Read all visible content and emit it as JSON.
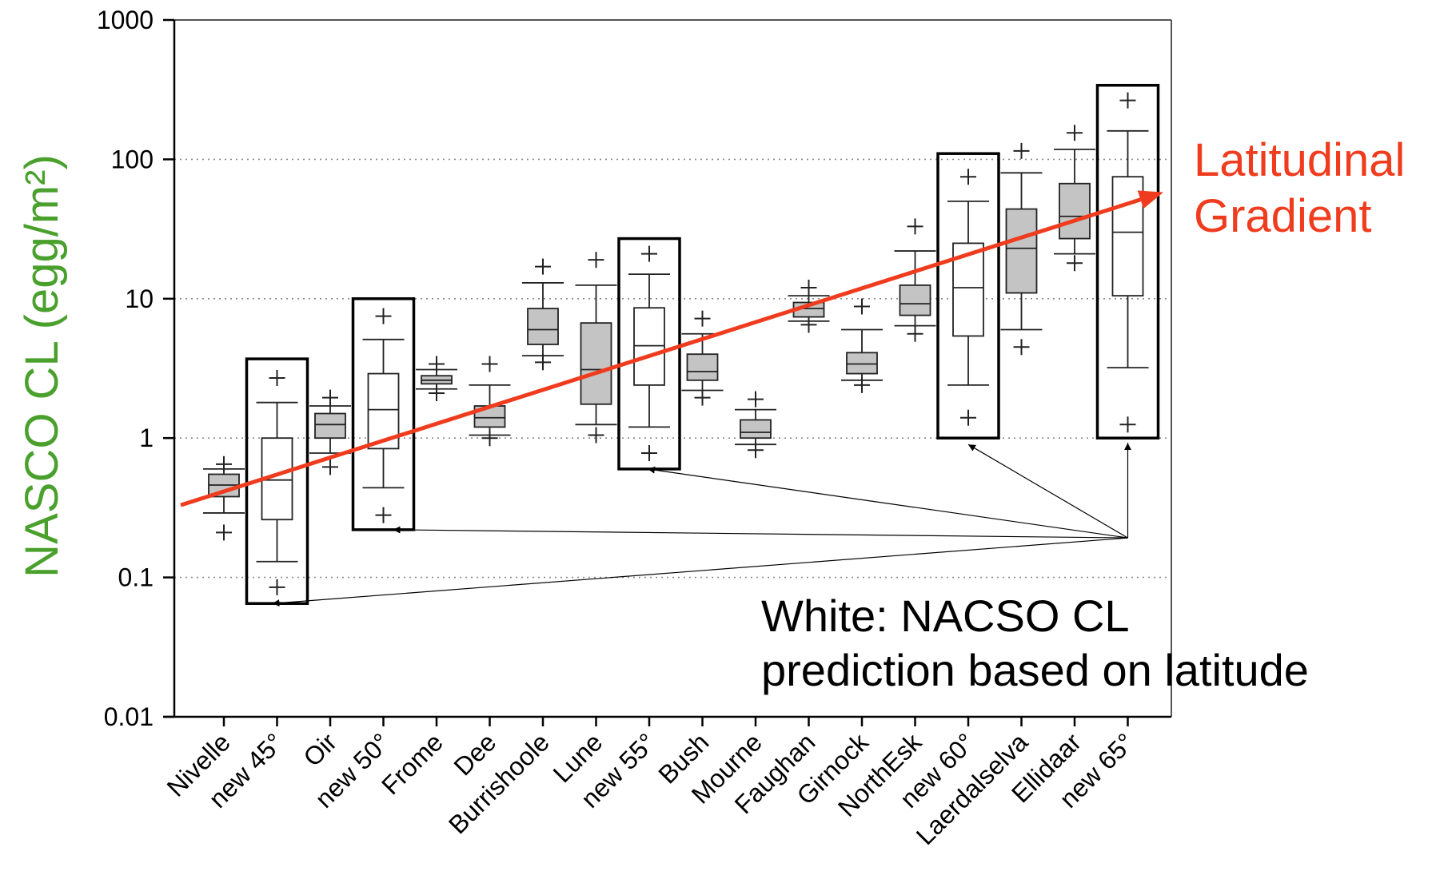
{
  "chart_data": {
    "type": "box",
    "ylabel": "NASCO CL (egg/m²)",
    "yscale": "log",
    "ylim": [
      0.01,
      1000
    ],
    "yticks": [
      0.01,
      0.1,
      1,
      10,
      100,
      1000
    ],
    "ytick_labels": [
      "0.01",
      "0.1",
      "1",
      "10",
      "100",
      "1000"
    ],
    "grid": "horizontal dotted at 0.1, 1, 10, 100",
    "categories": [
      "Nivelle",
      "new 45°",
      "Oir",
      "new 50°",
      "Frome",
      "Dee",
      "Burrishoole",
      "Lune",
      "new 55°",
      "Bush",
      "Mourne",
      "Faughan",
      "Girnock",
      "NorthEsk",
      "new 60°",
      "Laerdalselva",
      "Ellidaar",
      "new 65°"
    ],
    "boxes": [
      {
        "category": "Nivelle",
        "kind": "observed",
        "whisker_low": 0.29,
        "q1": 0.38,
        "median": 0.46,
        "q3": 0.55,
        "whisker_high": 0.6,
        "outliers": [
          0.21,
          0.65
        ]
      },
      {
        "category": "new 45°",
        "kind": "prediction",
        "whisker_low": 0.13,
        "q1": 0.26,
        "median": 0.5,
        "q3": 1.0,
        "whisker_high": 1.8,
        "outliers": [
          0.085,
          2.7
        ]
      },
      {
        "category": "Oir",
        "kind": "observed",
        "whisker_low": 0.78,
        "q1": 1.0,
        "median": 1.25,
        "q3": 1.5,
        "whisker_high": 1.7,
        "outliers": [
          0.62,
          1.95
        ]
      },
      {
        "category": "new 50°",
        "kind": "prediction",
        "whisker_low": 0.44,
        "q1": 0.84,
        "median": 1.6,
        "q3": 2.9,
        "whisker_high": 5.1,
        "outliers": [
          0.28,
          7.5
        ]
      },
      {
        "category": "Frome",
        "kind": "observed",
        "whisker_low": 2.25,
        "q1": 2.45,
        "median": 2.6,
        "q3": 2.8,
        "whisker_high": 3.1,
        "outliers": [
          2.1,
          3.4
        ]
      },
      {
        "category": "Dee",
        "kind": "observed",
        "whisker_low": 1.05,
        "q1": 1.2,
        "median": 1.4,
        "q3": 1.7,
        "whisker_high": 2.4,
        "outliers": [
          1.0,
          3.4
        ]
      },
      {
        "category": "Burrishoole",
        "kind": "observed",
        "whisker_low": 3.9,
        "q1": 4.7,
        "median": 6.0,
        "q3": 8.5,
        "whisker_high": 13,
        "outliers": [
          3.5,
          17
        ]
      },
      {
        "category": "Lune",
        "kind": "observed",
        "whisker_low": 1.25,
        "q1": 1.75,
        "median": 3.1,
        "q3": 6.7,
        "whisker_high": 12.5,
        "outliers": [
          1.05,
          19
        ]
      },
      {
        "category": "new 55°",
        "kind": "prediction",
        "whisker_low": 1.2,
        "q1": 2.4,
        "median": 4.6,
        "q3": 8.6,
        "whisker_high": 15,
        "outliers": [
          0.78,
          21
        ]
      },
      {
        "category": "Bush",
        "kind": "observed",
        "whisker_low": 2.2,
        "q1": 2.6,
        "median": 3.0,
        "q3": 4.0,
        "whisker_high": 5.6,
        "outliers": [
          1.95,
          7.2
        ]
      },
      {
        "category": "Mourne",
        "kind": "observed",
        "whisker_low": 0.9,
        "q1": 1.0,
        "median": 1.1,
        "q3": 1.35,
        "whisker_high": 1.6,
        "outliers": [
          0.82,
          1.9
        ]
      },
      {
        "category": "Faughan",
        "kind": "observed",
        "whisker_low": 6.9,
        "q1": 7.4,
        "median": 8.5,
        "q3": 9.4,
        "whisker_high": 10.5,
        "outliers": [
          6.5,
          12
        ]
      },
      {
        "category": "Girnock",
        "kind": "observed",
        "whisker_low": 2.6,
        "q1": 2.9,
        "median": 3.4,
        "q3": 4.1,
        "whisker_high": 6.0,
        "outliers": [
          2.4,
          8.8
        ]
      },
      {
        "category": "NorthEsk",
        "kind": "observed",
        "whisker_low": 6.4,
        "q1": 7.6,
        "median": 9.2,
        "q3": 12.5,
        "whisker_high": 22,
        "outliers": [
          5.6,
          33
        ]
      },
      {
        "category": "new 60°",
        "kind": "prediction",
        "whisker_low": 2.4,
        "q1": 5.4,
        "median": 12,
        "q3": 25,
        "whisker_high": 50,
        "outliers": [
          1.4,
          75
        ]
      },
      {
        "category": "Laerdalselva",
        "kind": "observed",
        "whisker_low": 6.0,
        "q1": 11,
        "median": 23,
        "q3": 44,
        "whisker_high": 80,
        "outliers": [
          4.5,
          115
        ]
      },
      {
        "category": "Ellidaar",
        "kind": "observed",
        "whisker_low": 21,
        "q1": 27,
        "median": 39,
        "q3": 67,
        "whisker_high": 118,
        "outliers": [
          18,
          155
        ]
      },
      {
        "category": "new 65°",
        "kind": "prediction",
        "whisker_low": 3.2,
        "q1": 10.5,
        "median": 30,
        "q3": 75,
        "whisker_high": 160,
        "outliers": [
          1.25,
          265
        ]
      }
    ],
    "highlight_frames": [
      {
        "category": "new 45°",
        "y_range": [
          0.065,
          3.7
        ]
      },
      {
        "category": "new 50°",
        "y_range": [
          0.22,
          10
        ]
      },
      {
        "category": "new 55°",
        "y_range": [
          0.6,
          27
        ]
      },
      {
        "category": "new 60°",
        "y_range": [
          1.0,
          110
        ]
      },
      {
        "category": "new 65°",
        "y_range": [
          1.0,
          340
        ]
      }
    ],
    "trend_arrow": {
      "label": [
        "Latitudinal",
        "Gradient"
      ],
      "from_y": 0.33,
      "to_y": 58,
      "color": "#f03c1e"
    },
    "annotation": {
      "lines": [
        "White: NACSO CL",
        "prediction based on latitude"
      ],
      "anchor_y": 0.2
    },
    "colors": {
      "observed_fill": "#c4c4c4",
      "prediction_fill": "#ffffff",
      "ylabel": "#4aa02c",
      "trend": "#f03c1e"
    }
  }
}
